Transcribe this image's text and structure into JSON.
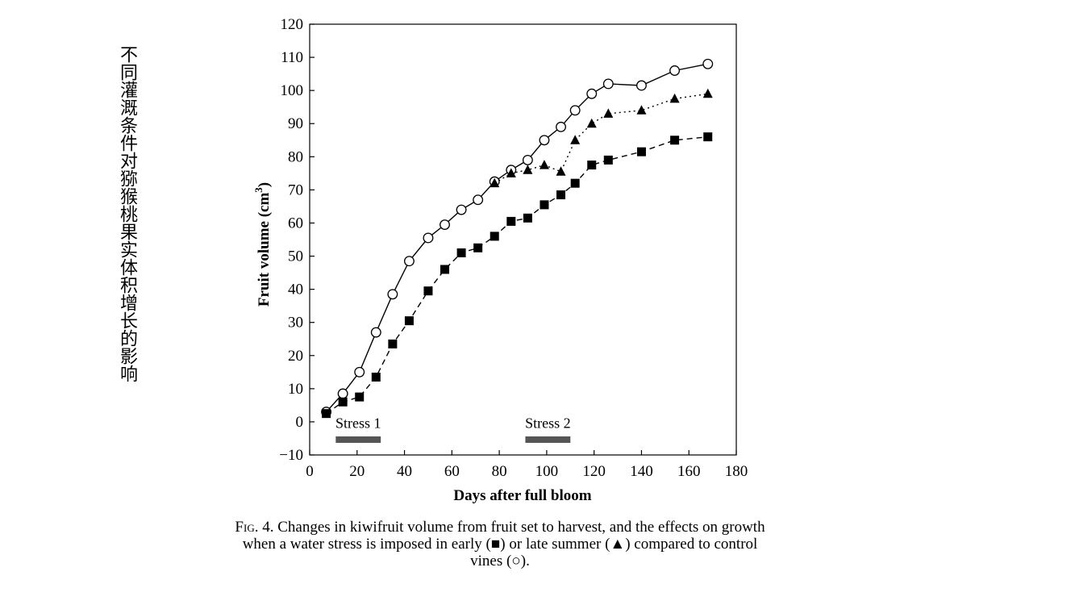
{
  "side_title": "不同灌溉条件对猕猴桃果实体积增长的影响",
  "caption": {
    "prefix": "Fig.",
    "body": " 4. Changes in kiwifruit volume from fruit set to harvest, and the effects on growth when a water stress is imposed in early (■) or late summer (▲) compared to control vines (○)."
  },
  "chart_data": {
    "type": "line",
    "xlabel": "Days after full bloom",
    "ylabel": "Fruit volume (cm",
    "ylabel_sup": "3",
    "ylabel_close": ")",
    "xlim": [
      0,
      180
    ],
    "ylim": [
      -10,
      120
    ],
    "xticks": [
      0,
      20,
      40,
      60,
      80,
      100,
      120,
      140,
      160,
      180
    ],
    "yticks": [
      -10,
      0,
      10,
      20,
      30,
      40,
      50,
      60,
      70,
      80,
      90,
      100,
      110,
      120
    ],
    "ytick_labels": [
      "−10",
      "0",
      "10",
      "20",
      "30",
      "40",
      "50",
      "60",
      "70",
      "80",
      "90",
      "100",
      "110",
      "120"
    ],
    "grid": false,
    "series": [
      {
        "marker": "open-circle",
        "line": "solid",
        "x": [
          7,
          14,
          21,
          28,
          35,
          42,
          50,
          57,
          64,
          71,
          78,
          85,
          92,
          99,
          106,
          112,
          119,
          126,
          140,
          154,
          168
        ],
        "y": [
          3,
          8.5,
          15,
          27,
          38.5,
          48.5,
          55.5,
          59.5,
          64,
          67,
          72.5,
          76,
          79,
          85,
          89,
          94,
          99,
          102,
          101.5,
          106,
          108
        ]
      },
      {
        "marker": "filled-triangle",
        "line": "dotted",
        "x": [
          78,
          85,
          92,
          99,
          106,
          112,
          119,
          126,
          140,
          154,
          168
        ],
        "y": [
          72,
          75,
          76,
          77.5,
          75.5,
          85,
          90,
          93,
          94,
          97.5,
          99
        ]
      },
      {
        "marker": "filled-square",
        "line": "dashed",
        "x": [
          7,
          14,
          21,
          28,
          35,
          42,
          50,
          57,
          64,
          71,
          78,
          85,
          92,
          99,
          106,
          112,
          119,
          126,
          140,
          154,
          168
        ],
        "y": [
          2.5,
          6,
          7.5,
          13.5,
          23.5,
          30.5,
          39.5,
          46,
          51,
          52.5,
          56,
          60.5,
          61.5,
          65.5,
          68.5,
          72,
          77.5,
          79,
          81.5,
          85,
          86
        ]
      }
    ],
    "annotations": [
      {
        "label": "Stress 1",
        "x_start": 11,
        "x_end": 30,
        "bar_color": "#555555"
      },
      {
        "label": "Stress 2",
        "x_start": 91,
        "x_end": 110,
        "bar_color": "#555555"
      }
    ]
  }
}
